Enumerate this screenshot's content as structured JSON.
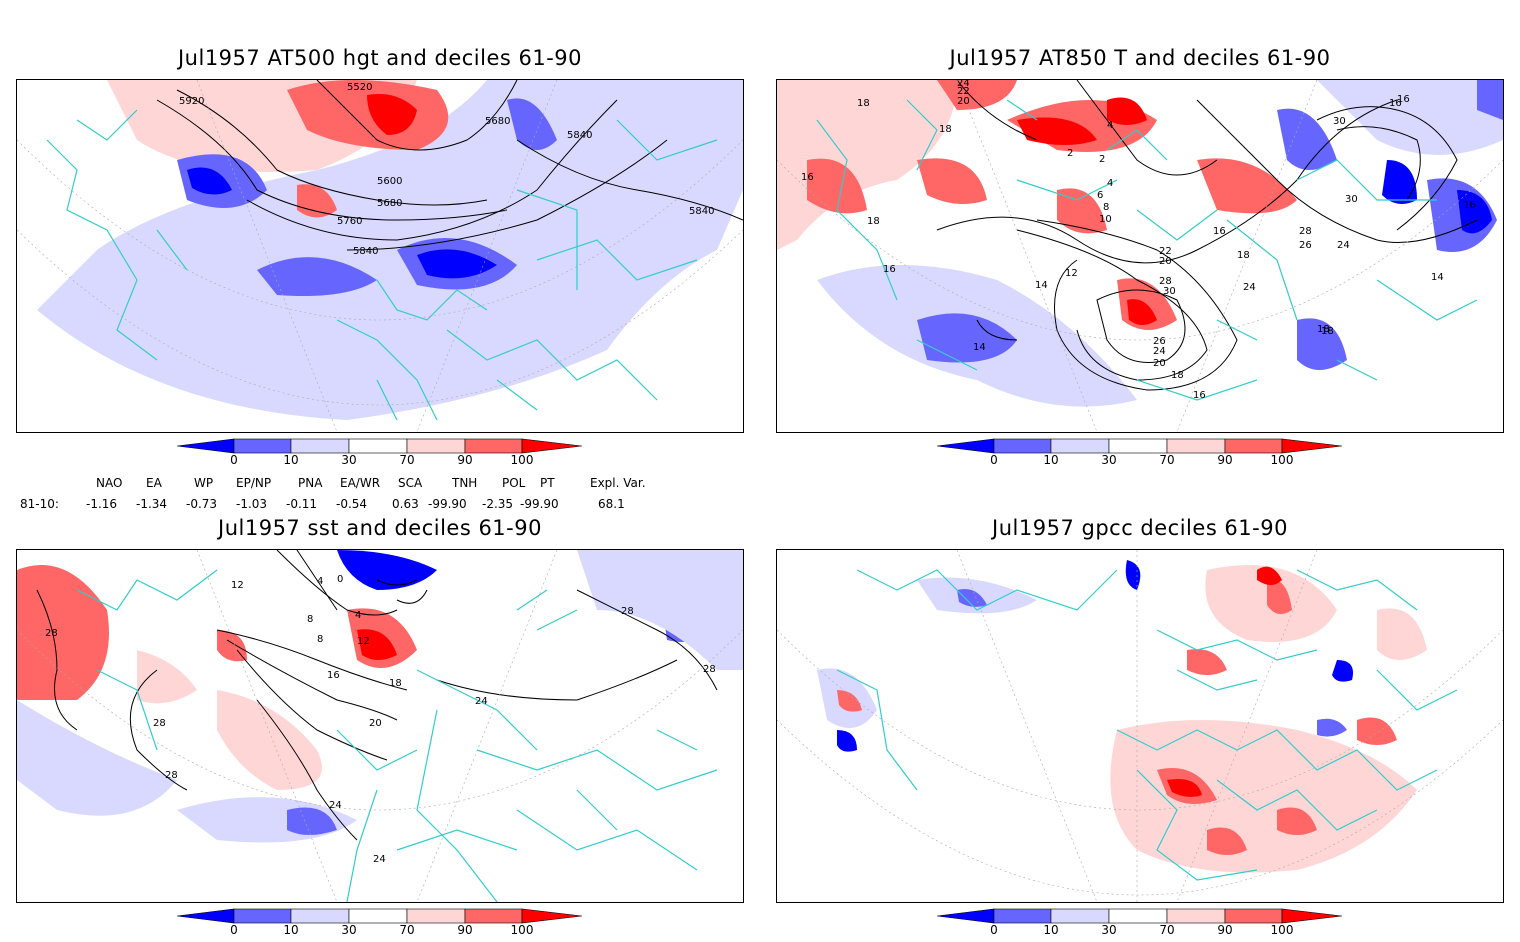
{
  "panels": [
    {
      "title": "Jul1957 AT500 hgt and deciles 61-90",
      "contour_labels": [
        "5920",
        "5520",
        "5680",
        "5840",
        "5600",
        "5680",
        "5760",
        "5840",
        "5840"
      ]
    },
    {
      "title": "Jul1957 AT850 T and deciles 61-90",
      "contour_labels": [
        "18",
        "24",
        "22",
        "20",
        "18",
        "16",
        "18",
        "4",
        "2",
        "2",
        "4",
        "6",
        "8",
        "10",
        "16",
        "18",
        "12",
        "14",
        "16",
        "14",
        "22",
        "20",
        "28",
        "30",
        "24",
        "18",
        "26",
        "24",
        "20",
        "18",
        "16",
        "30",
        "16",
        "16",
        "30",
        "28",
        "26",
        "24",
        "16",
        "14",
        "18"
      ]
    },
    {
      "title": "Jul1957 sst and deciles 61-90",
      "contour_labels": [
        "28",
        "12",
        "8",
        "4",
        "0",
        "4",
        "8",
        "12",
        "16",
        "18",
        "20",
        "24",
        "28",
        "28",
        "24",
        "28",
        "24",
        "28"
      ]
    },
    {
      "title": "Jul1957 gpcc deciles 61-90",
      "contour_labels": []
    }
  ],
  "colorbar": {
    "ticks": [
      "0",
      "10",
      "30",
      "70",
      "90",
      "100"
    ],
    "colors": [
      "#0000ff",
      "#6666ff",
      "#d9d9ff",
      "#ffffff",
      "#ffd6d6",
      "#ff6666",
      "#ff0000"
    ]
  },
  "indices": {
    "headers": [
      "NAO",
      "EA",
      "WP",
      "EP/NP",
      "PNA",
      "EA/WR",
      "SCA",
      "TNH",
      "POL",
      "PT",
      "Expl. Var."
    ],
    "row_label": "81-10:",
    "values": [
      "-1.16",
      "-1.34",
      "-0.73",
      "-1.03",
      "-0.11",
      "-0.54",
      "0.63",
      "-99.90",
      "-2.35",
      "-99.90",
      "68.1"
    ]
  }
}
